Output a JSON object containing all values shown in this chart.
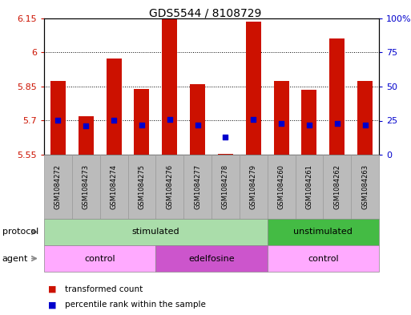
{
  "title": "GDS5544 / 8108729",
  "samples": [
    "GSM1084272",
    "GSM1084273",
    "GSM1084274",
    "GSM1084275",
    "GSM1084276",
    "GSM1084277",
    "GSM1084278",
    "GSM1084279",
    "GSM1084260",
    "GSM1084261",
    "GSM1084262",
    "GSM1084263"
  ],
  "transformed_counts": [
    5.875,
    5.72,
    5.975,
    5.84,
    6.145,
    5.86,
    5.555,
    6.135,
    5.875,
    5.835,
    6.06,
    5.875
  ],
  "percentile_ranks": [
    25,
    21,
    25,
    22,
    26,
    22,
    13,
    26,
    23,
    22,
    23,
    22
  ],
  "ylim_left": [
    5.55,
    6.15
  ],
  "ylim_right": [
    0,
    100
  ],
  "yticks_left": [
    5.55,
    5.7,
    5.85,
    6.0,
    6.15
  ],
  "yticks_right": [
    0,
    25,
    50,
    75,
    100
  ],
  "ytick_labels_left": [
    "5.55",
    "5.7",
    "5.85",
    "6",
    "6.15"
  ],
  "ytick_labels_right": [
    "0",
    "25",
    "50",
    "75",
    "100%"
  ],
  "bar_color": "#cc1100",
  "dot_color": "#0000cc",
  "bar_bottom": 5.55,
  "protocol_groups": [
    {
      "label": "stimulated",
      "start": 0,
      "end": 8,
      "color": "#aaddaa"
    },
    {
      "label": "unstimulated",
      "start": 8,
      "end": 12,
      "color": "#44bb44"
    }
  ],
  "agent_groups": [
    {
      "label": "control",
      "start": 0,
      "end": 4,
      "color": "#ffaaff"
    },
    {
      "label": "edelfosine",
      "start": 4,
      "end": 8,
      "color": "#cc55cc"
    },
    {
      "label": "control",
      "start": 8,
      "end": 12,
      "color": "#ffaaff"
    }
  ],
  "legend_items": [
    {
      "label": "transformed count",
      "color": "#cc1100"
    },
    {
      "label": "percentile rank within the sample",
      "color": "#0000cc"
    }
  ],
  "tick_label_color_left": "#cc1100",
  "tick_label_color_right": "#0000cc",
  "xtick_bg_color": "#bbbbbb",
  "left_label_color": "#888888"
}
